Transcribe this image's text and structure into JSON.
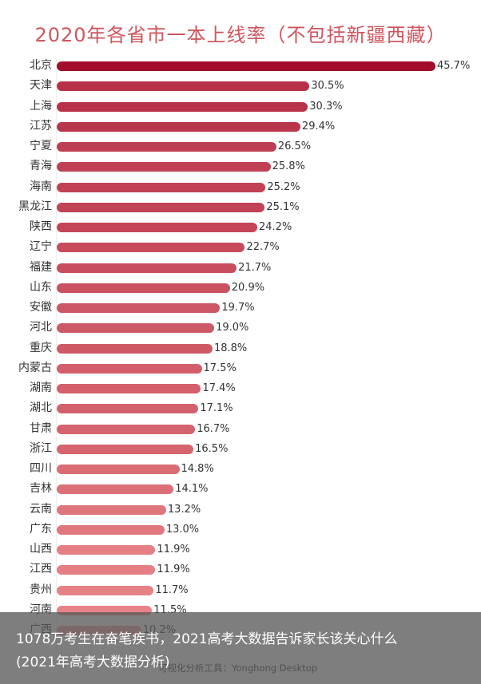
{
  "chart_data": {
    "type": "bar",
    "orientation": "horizontal",
    "title": "2020年各省市一本上线率（不包括新疆西藏）",
    "xlabel": "",
    "ylabel": "",
    "unit": "%",
    "xlim": [
      0,
      46
    ],
    "grid": false,
    "legend": null,
    "categories": [
      "北京",
      "天津",
      "上海",
      "江苏",
      "宁夏",
      "青海",
      "海南",
      "黑龙江",
      "陕西",
      "辽宁",
      "福建",
      "山东",
      "安徽",
      "河北",
      "重庆",
      "内蒙古",
      "湖南",
      "湖北",
      "甘肃",
      "浙江",
      "四川",
      "吉林",
      "云南",
      "广东",
      "山西",
      "江西",
      "贵州",
      "河南",
      "广西"
    ],
    "values": [
      45.7,
      30.5,
      30.3,
      29.4,
      26.5,
      25.8,
      25.2,
      25.1,
      24.2,
      22.7,
      21.7,
      20.9,
      19.7,
      19.0,
      18.8,
      17.5,
      17.4,
      17.1,
      16.7,
      16.5,
      14.8,
      14.1,
      13.2,
      13.0,
      11.9,
      11.9,
      11.7,
      11.5,
      10.2
    ],
    "labels": [
      "45.7%",
      "30.5%",
      "30.3%",
      "29.4%",
      "26.5%",
      "25.8%",
      "25.2%",
      "25.1%",
      "24.2%",
      "22.7%",
      "21.7%",
      "20.9%",
      "19.7%",
      "19.0%",
      "18.8%",
      "17.5%",
      "17.4%",
      "17.1%",
      "16.7%",
      "16.5%",
      "14.8%",
      "14.1%",
      "13.2%",
      "13.0%",
      "11.9%",
      "11.9%",
      "11.7%",
      "11.5%",
      "10.2%"
    ],
    "color_scale": {
      "high": "#a10d2a",
      "low": "#f59a9a"
    }
  },
  "footer": {
    "credit": "可视化分析工具：Yonghong Desktop"
  },
  "overlay": {
    "caption": "1078万考生在奋笔疾书，2021高考大数据告诉家长该关心什么(2021年高考大数据分析)"
  }
}
